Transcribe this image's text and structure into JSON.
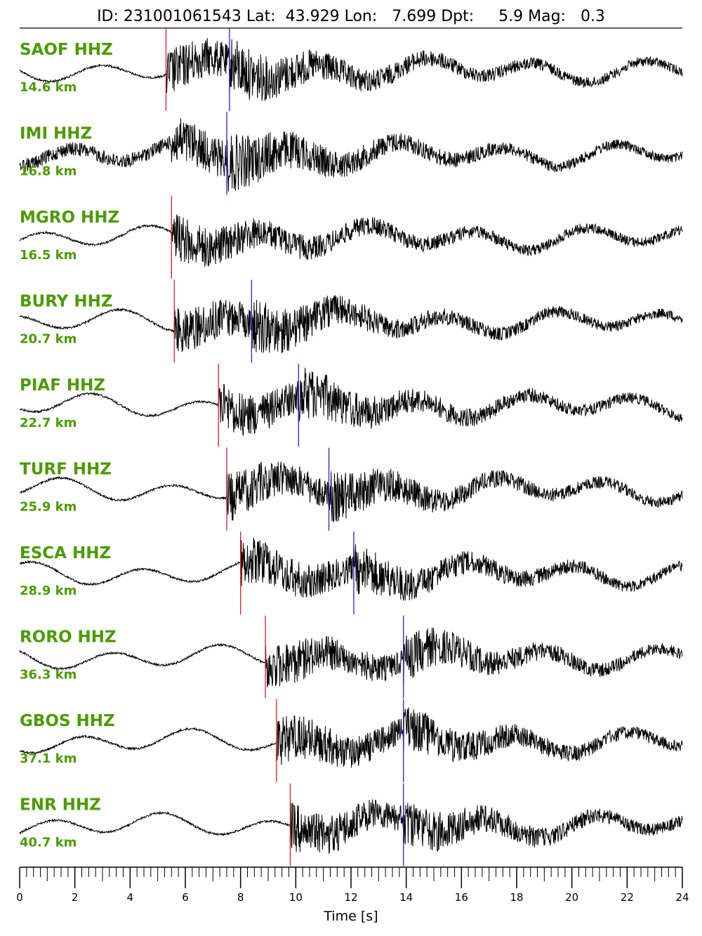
{
  "chart_data": {
    "type": "line",
    "title": "ID: 231001061543 Lat:  43.929 Lon:   7.699 Dpt:     5.9 Mag:   0.3",
    "xlabel": "Time [s]",
    "ylabel": "",
    "xlim": [
      0,
      24
    ],
    "x_ticks": [
      "0",
      "2",
      "4",
      "6",
      "8",
      "10",
      "12",
      "14",
      "16",
      "18",
      "20",
      "22",
      "24"
    ],
    "grid": false,
    "colors": {
      "trace": "#000000",
      "p_pick": "#e41a1c",
      "s_pick": "#1f1fdd",
      "label": "#4c9a00"
    },
    "series": [
      {
        "station": "SAOF HHZ",
        "distance": "14.6 km",
        "p_pick": 5.3,
        "s_pick": 7.6
      },
      {
        "station": "IMI HHZ",
        "distance": "16.8 km",
        "p_pick": null,
        "s_pick": 7.5
      },
      {
        "station": "MGRO HHZ",
        "distance": "16.5 km",
        "p_pick": 5.5,
        "s_pick": null
      },
      {
        "station": "BURY HHZ",
        "distance": "20.7 km",
        "p_pick": 5.6,
        "s_pick": 8.4
      },
      {
        "station": "PIAF HHZ",
        "distance": "22.7 km",
        "p_pick": 7.2,
        "s_pick": 10.1
      },
      {
        "station": "TURF HHZ",
        "distance": "25.9 km",
        "p_pick": 7.5,
        "s_pick": 11.2
      },
      {
        "station": "ESCA HHZ",
        "distance": "28.9 km",
        "p_pick": 8.0,
        "s_pick": 12.1
      },
      {
        "station": "RORO HHZ",
        "distance": "36.3 km",
        "p_pick": 8.9,
        "s_pick": 13.9
      },
      {
        "station": "GBOS HHZ",
        "distance": "37.1 km",
        "p_pick": 9.3,
        "s_pick": 13.9
      },
      {
        "station": "ENR HHZ",
        "distance": "40.7 km",
        "p_pick": 9.8,
        "s_pick": 13.9
      }
    ]
  }
}
